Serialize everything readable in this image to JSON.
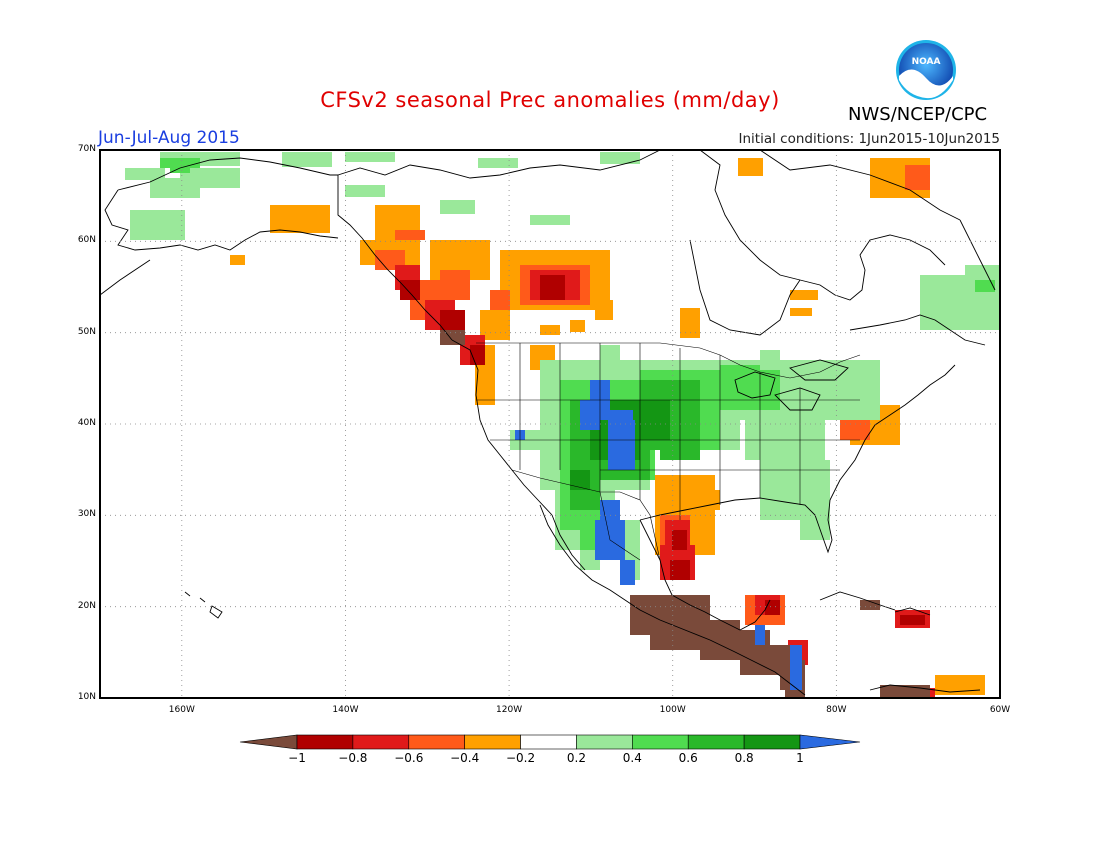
{
  "header": {
    "title": "CFSv2 seasonal Prec anomalies (mm/day)",
    "period": "Jun-Jul-Aug 2015",
    "initial_conditions": "Initial conditions: 1Jun2015-10Jun2015",
    "agency": "NWS/NCEP/CPC",
    "logo_text": "NOAA"
  },
  "map": {
    "lat_labels": [
      "70N",
      "60N",
      "50N",
      "40N",
      "30N",
      "20N",
      "10N"
    ],
    "lon_labels": [
      "160W",
      "140W",
      "120W",
      "100W",
      "80W",
      "60W"
    ],
    "lat_range": [
      10,
      70
    ],
    "lon_range": [
      -170,
      -60
    ]
  },
  "colorbar": {
    "ticks": [
      "-1",
      "-0.8",
      "-0.6",
      "-0.4",
      "-0.2",
      "0.2",
      "0.4",
      "0.6",
      "0.8",
      "1"
    ],
    "colors": [
      "#7a4a3a",
      "#b00000",
      "#e01a1a",
      "#ff5a1a",
      "#ffa000",
      "#ffffff",
      "#9ae89a",
      "#50dc50",
      "#2ab82a",
      "#149614",
      "#2a6ae0"
    ]
  }
}
